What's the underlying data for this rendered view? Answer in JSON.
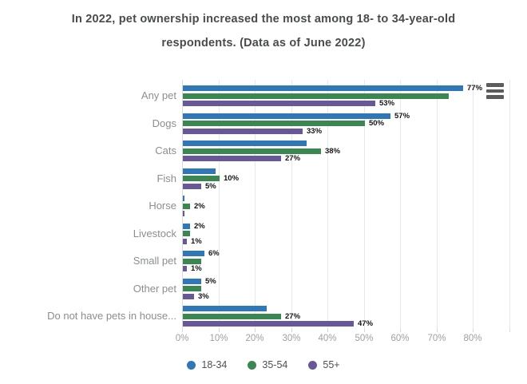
{
  "title": "In 2022, pet ownership increased the most among 18- to 34-year-old respondents. (Data as of June 2022)",
  "colors": {
    "series_18_34": "#2f77b7",
    "series_35_54": "#3a8751",
    "series_55_plus": "#685897",
    "title_text": "#494b4e",
    "category_label_text": "#8b8e90",
    "axis_label_text": "#9da0a3",
    "value_label_text": "#141414",
    "gridline": "#e6e8ea"
  },
  "icons": {
    "menu": "hamburger-menu-icon"
  },
  "chart_data": {
    "type": "bar",
    "orientation": "horizontal",
    "grouped": true,
    "title": "In 2022, pet ownership increased the most among 18- to 34-year-old respondents. (Data as of June 2022)",
    "categories": [
      "Any pet",
      "Dogs",
      "Cats",
      "Fish",
      "Horse",
      "Livestock",
      "Small pet",
      "Other pet",
      "Do not have pets in house..."
    ],
    "series": [
      {
        "name": "18-34",
        "color": "#2f77b7",
        "values": [
          77,
          57,
          34,
          9,
          0.5,
          2,
          6,
          5,
          23
        ],
        "labels": [
          "77%",
          "57%",
          "",
          "",
          "",
          "2%",
          "6%",
          "5%",
          ""
        ]
      },
      {
        "name": "35-54",
        "color": "#3a8751",
        "values": [
          73,
          50,
          38,
          10,
          2,
          2,
          5,
          5,
          27
        ],
        "labels": [
          "",
          "50%",
          "38%",
          "10%",
          "2%",
          "",
          "",
          "",
          "27%"
        ]
      },
      {
        "name": "55+",
        "color": "#685897",
        "values": [
          53,
          33,
          27,
          5,
          0.5,
          1,
          1,
          3,
          47
        ],
        "labels": [
          "53%",
          "33%",
          "27%",
          "5%",
          "",
          "1%",
          "1%",
          "3%",
          "47%"
        ]
      }
    ],
    "x_axis": {
      "tick_labels": [
        "0%",
        "10%",
        "20%",
        "30%",
        "40%",
        "50%",
        "60%",
        "70%",
        "80%"
      ],
      "tick_values": [
        0,
        10,
        20,
        30,
        40,
        50,
        60,
        70,
        80
      ],
      "max": 90,
      "grid": true
    },
    "legend": {
      "position": "bottom",
      "entries": [
        "18-34",
        "35-54",
        "55+"
      ]
    }
  }
}
